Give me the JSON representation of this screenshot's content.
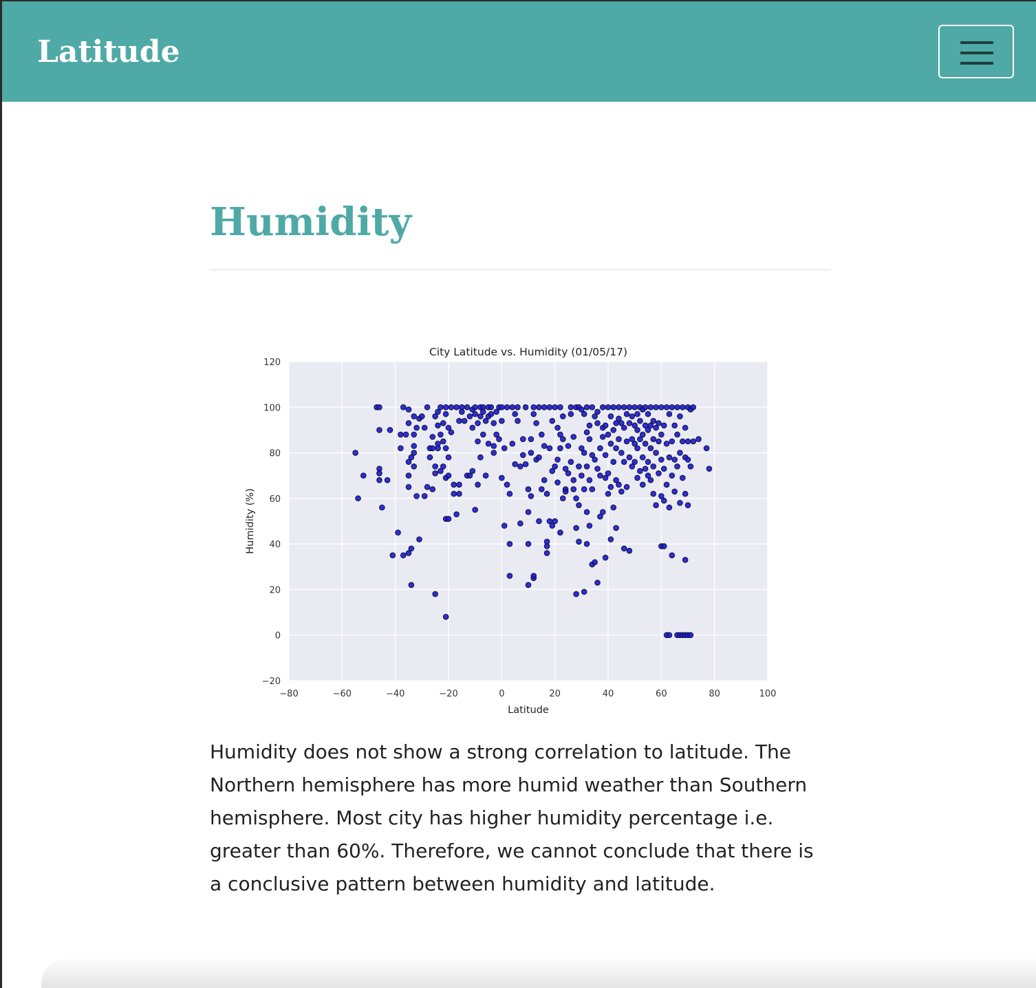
{
  "navbar": {
    "brand": "Latitude",
    "menu_icon": "hamburger-menu-icon",
    "color": "#4fa9a6"
  },
  "page": {
    "title": "Humidity",
    "title_color": "#4fa9a6",
    "description": "Humidity does not show a strong correlation to latitude. The Northern hemisphere has more humid weather than Southern hemisphere. Most city has higher humidity percentage i.e. greater than 60%. Therefore, we cannot conclude that there is a conclusive pattern between humidity and latitude."
  },
  "chart_data": {
    "type": "scatter",
    "title": "City Latitude vs. Humidity (01/05/17)",
    "xlabel": "Latitude",
    "ylabel": "Humidity (%)",
    "xlim": [
      -80,
      100
    ],
    "ylim": [
      -20,
      120
    ],
    "xticks": [
      "−80",
      "−60",
      "−40",
      "−20",
      "0",
      "20",
      "40",
      "60",
      "80",
      "100"
    ],
    "yticks": [
      "−20",
      "0",
      "20",
      "40",
      "60",
      "80",
      "100",
      "120"
    ],
    "grid": true,
    "background": "#e9eaf2",
    "marker_color": "#1a1ad6",
    "points": [
      [
        -55,
        80
      ],
      [
        -54,
        60
      ],
      [
        -52,
        70
      ],
      [
        -47,
        100
      ],
      [
        -46,
        100
      ],
      [
        -46,
        90
      ],
      [
        -46,
        68
      ],
      [
        -46,
        73
      ],
      [
        -46,
        71
      ],
      [
        -45,
        56
      ],
      [
        -43,
        68
      ],
      [
        -42,
        90
      ],
      [
        -41,
        35
      ],
      [
        -39,
        45
      ],
      [
        -38,
        88
      ],
      [
        -38,
        82
      ],
      [
        -37,
        100
      ],
      [
        -37,
        35
      ],
      [
        -36,
        88
      ],
      [
        -35,
        65
      ],
      [
        -35,
        70
      ],
      [
        -35,
        76
      ],
      [
        -35,
        93
      ],
      [
        -35,
        99
      ],
      [
        -35,
        36
      ],
      [
        -34,
        38
      ],
      [
        -34,
        22
      ],
      [
        -34,
        78
      ],
      [
        -33,
        83
      ],
      [
        -33,
        80
      ],
      [
        -33,
        74
      ],
      [
        -33,
        88
      ],
      [
        -33,
        96
      ],
      [
        -32,
        91
      ],
      [
        -32,
        61
      ],
      [
        -31,
        42
      ],
      [
        -31,
        95
      ],
      [
        -30,
        96
      ],
      [
        -29,
        91
      ],
      [
        -29,
        61
      ],
      [
        -28,
        100
      ],
      [
        -28,
        65
      ],
      [
        -27,
        78
      ],
      [
        -27,
        82
      ],
      [
        -26,
        87
      ],
      [
        -26,
        64
      ],
      [
        -26,
        82
      ],
      [
        -25,
        74
      ],
      [
        -25,
        71
      ],
      [
        -25,
        18
      ],
      [
        -25,
        96
      ],
      [
        -24,
        98
      ],
      [
        -24,
        92
      ],
      [
        -24,
        84
      ],
      [
        -24,
        82
      ],
      [
        -23,
        100
      ],
      [
        -23,
        88
      ],
      [
        -23,
        72
      ],
      [
        -22,
        93
      ],
      [
        -22,
        85
      ],
      [
        -22,
        74
      ],
      [
        -21,
        51
      ],
      [
        -21,
        8
      ],
      [
        -21,
        69
      ],
      [
        -21,
        97
      ],
      [
        -21,
        82
      ],
      [
        -21,
        100
      ],
      [
        -20,
        78
      ],
      [
        -20,
        51
      ],
      [
        -20,
        91
      ],
      [
        -20,
        70
      ],
      [
        -19,
        100
      ],
      [
        -19,
        89
      ],
      [
        -18,
        66
      ],
      [
        -18,
        62
      ],
      [
        -17,
        53
      ],
      [
        -17,
        100
      ],
      [
        -16,
        94
      ],
      [
        -16,
        66
      ],
      [
        -16,
        62
      ],
      [
        -15,
        100
      ],
      [
        -15,
        98
      ],
      [
        -14,
        94
      ],
      [
        -13,
        70
      ],
      [
        -13,
        100
      ],
      [
        -12,
        96
      ],
      [
        -12,
        70
      ],
      [
        -11,
        99
      ],
      [
        -11,
        91
      ],
      [
        -11,
        72
      ],
      [
        -10,
        100
      ],
      [
        -10,
        55
      ],
      [
        -10,
        97
      ],
      [
        -9,
        93
      ],
      [
        -9,
        85
      ],
      [
        -9,
        66
      ],
      [
        -8,
        100
      ],
      [
        -8,
        96
      ],
      [
        -8,
        78
      ],
      [
        -7,
        98
      ],
      [
        -7,
        88
      ],
      [
        -7,
        100
      ],
      [
        -6,
        94
      ],
      [
        -6,
        70
      ],
      [
        -5,
        100
      ],
      [
        -5,
        96
      ],
      [
        -5,
        84
      ],
      [
        -4,
        97
      ],
      [
        -4,
        100
      ],
      [
        -3,
        93
      ],
      [
        -3,
        83
      ],
      [
        -3,
        80
      ],
      [
        -2,
        98
      ],
      [
        -2,
        88
      ],
      [
        -1,
        100
      ],
      [
        -1,
        86
      ],
      [
        0,
        100
      ],
      [
        0,
        69
      ],
      [
        0,
        94
      ],
      [
        1,
        48
      ],
      [
        1,
        82
      ],
      [
        2,
        66
      ],
      [
        2,
        100
      ],
      [
        3,
        40
      ],
      [
        3,
        26
      ],
      [
        3,
        62
      ],
      [
        4,
        100
      ],
      [
        4,
        84
      ],
      [
        5,
        97
      ],
      [
        5,
        75
      ],
      [
        6,
        100
      ],
      [
        6,
        94
      ],
      [
        7,
        49
      ],
      [
        7,
        74
      ],
      [
        8,
        79
      ],
      [
        8,
        86
      ],
      [
        9,
        100
      ],
      [
        9,
        75
      ],
      [
        10,
        54
      ],
      [
        10,
        40
      ],
      [
        10,
        22
      ],
      [
        10,
        64
      ],
      [
        11,
        86
      ],
      [
        11,
        61
      ],
      [
        11,
        80
      ],
      [
        12,
        100
      ],
      [
        12,
        97
      ],
      [
        12,
        25
      ],
      [
        12,
        26
      ],
      [
        13,
        93
      ],
      [
        13,
        77
      ],
      [
        14,
        100
      ],
      [
        14,
        78
      ],
      [
        14,
        50
      ],
      [
        15,
        88
      ],
      [
        15,
        64
      ],
      [
        16,
        100
      ],
      [
        16,
        83
      ],
      [
        16,
        68
      ],
      [
        17,
        36
      ],
      [
        17,
        39
      ],
      [
        17,
        41
      ],
      [
        17,
        62
      ],
      [
        18,
        100
      ],
      [
        18,
        82
      ],
      [
        18,
        50
      ],
      [
        19,
        72
      ],
      [
        19,
        48
      ],
      [
        19,
        94
      ],
      [
        20,
        100
      ],
      [
        20,
        74
      ],
      [
        20,
        50
      ],
      [
        21,
        91
      ],
      [
        21,
        77
      ],
      [
        21,
        67
      ],
      [
        22,
        100
      ],
      [
        22,
        88
      ],
      [
        22,
        82
      ],
      [
        22,
        45
      ],
      [
        23,
        60
      ],
      [
        23,
        96
      ],
      [
        23,
        86
      ],
      [
        24,
        73
      ],
      [
        24,
        64
      ],
      [
        24,
        63
      ],
      [
        25,
        83
      ],
      [
        25,
        71
      ],
      [
        26,
        100
      ],
      [
        26,
        97
      ],
      [
        26,
        76
      ],
      [
        27,
        87
      ],
      [
        27,
        64
      ],
      [
        27,
        68
      ],
      [
        28,
        100
      ],
      [
        28,
        47
      ],
      [
        28,
        18
      ],
      [
        28,
        60
      ],
      [
        29,
        100
      ],
      [
        29,
        74
      ],
      [
        29,
        57
      ],
      [
        29,
        41
      ],
      [
        30,
        99
      ],
      [
        30,
        82
      ],
      [
        30,
        70
      ],
      [
        31,
        64
      ],
      [
        31,
        97
      ],
      [
        31,
        80
      ],
      [
        31,
        19
      ],
      [
        32,
        100
      ],
      [
        32,
        89
      ],
      [
        32,
        74
      ],
      [
        32,
        54
      ],
      [
        32,
        40
      ],
      [
        33,
        92
      ],
      [
        33,
        86
      ],
      [
        33,
        68
      ],
      [
        33,
        48
      ],
      [
        34,
        100
      ],
      [
        34,
        79
      ],
      [
        34,
        31
      ],
      [
        34,
        64
      ],
      [
        35,
        96
      ],
      [
        35,
        77
      ],
      [
        35,
        32
      ],
      [
        36,
        98
      ],
      [
        36,
        93
      ],
      [
        36,
        73
      ],
      [
        36,
        23
      ],
      [
        37,
        82
      ],
      [
        37,
        70
      ],
      [
        37,
        52
      ],
      [
        38,
        100
      ],
      [
        38,
        91
      ],
      [
        38,
        87
      ],
      [
        38,
        54
      ],
      [
        39,
        92
      ],
      [
        39,
        79
      ],
      [
        39,
        69
      ],
      [
        39,
        34
      ],
      [
        40,
        100
      ],
      [
        40,
        88
      ],
      [
        40,
        71
      ],
      [
        40,
        62
      ],
      [
        41,
        96
      ],
      [
        41,
        84
      ],
      [
        41,
        65
      ],
      [
        41,
        42
      ],
      [
        42,
        100
      ],
      [
        42,
        90
      ],
      [
        42,
        76
      ],
      [
        42,
        56
      ],
      [
        43,
        93
      ],
      [
        43,
        82
      ],
      [
        43,
        68
      ],
      [
        43,
        47
      ],
      [
        44,
        100
      ],
      [
        44,
        95
      ],
      [
        44,
        86
      ],
      [
        44,
        66
      ],
      [
        45,
        93
      ],
      [
        45,
        80
      ],
      [
        45,
        63
      ],
      [
        46,
        100
      ],
      [
        46,
        91
      ],
      [
        46,
        76
      ],
      [
        46,
        38
      ],
      [
        47,
        97
      ],
      [
        47,
        85
      ],
      [
        47,
        65
      ],
      [
        48,
        100
      ],
      [
        48,
        93
      ],
      [
        48,
        78
      ],
      [
        48,
        37
      ],
      [
        49,
        96
      ],
      [
        49,
        86
      ],
      [
        49,
        74
      ],
      [
        50,
        100
      ],
      [
        50,
        92
      ],
      [
        50,
        84
      ],
      [
        50,
        76
      ],
      [
        51,
        97
      ],
      [
        51,
        90
      ],
      [
        51,
        82
      ],
      [
        51,
        69
      ],
      [
        52,
        100
      ],
      [
        52,
        94
      ],
      [
        52,
        86
      ],
      [
        52,
        72
      ],
      [
        53,
        99
      ],
      [
        53,
        88
      ],
      [
        53,
        78
      ],
      [
        53,
        66
      ],
      [
        54,
        100
      ],
      [
        54,
        92
      ],
      [
        54,
        84
      ],
      [
        54,
        73
      ],
      [
        55,
        97
      ],
      [
        55,
        90
      ],
      [
        55,
        76
      ],
      [
        55,
        70
      ],
      [
        56,
        100
      ],
      [
        56,
        92
      ],
      [
        56,
        82
      ],
      [
        56,
        68
      ],
      [
        57,
        94
      ],
      [
        57,
        86
      ],
      [
        57,
        74
      ],
      [
        57,
        62
      ],
      [
        58,
        100
      ],
      [
        58,
        91
      ],
      [
        58,
        80
      ],
      [
        58,
        57
      ],
      [
        59,
        93
      ],
      [
        59,
        85
      ],
      [
        59,
        71
      ],
      [
        60,
        100
      ],
      [
        60,
        88
      ],
      [
        60,
        77
      ],
      [
        60,
        61
      ],
      [
        60,
        39
      ],
      [
        61,
        92
      ],
      [
        61,
        73
      ],
      [
        61,
        59
      ],
      [
        61,
        39
      ],
      [
        62,
        100
      ],
      [
        62,
        84
      ],
      [
        62,
        66
      ],
      [
        62,
        0
      ],
      [
        63,
        97
      ],
      [
        63,
        78
      ],
      [
        63,
        56
      ],
      [
        63,
        0
      ],
      [
        64,
        100
      ],
      [
        64,
        85
      ],
      [
        64,
        70
      ],
      [
        64,
        35
      ],
      [
        65,
        92
      ],
      [
        65,
        77
      ],
      [
        65,
        63
      ],
      [
        66,
        100
      ],
      [
        66,
        88
      ],
      [
        66,
        74
      ],
      [
        66,
        0
      ],
      [
        67,
        96
      ],
      [
        67,
        80
      ],
      [
        67,
        58
      ],
      [
        67,
        0
      ],
      [
        68,
        100
      ],
      [
        68,
        85
      ],
      [
        68,
        69
      ],
      [
        68,
        0
      ],
      [
        69,
        91
      ],
      [
        69,
        78
      ],
      [
        69,
        62
      ],
      [
        69,
        33
      ],
      [
        69,
        0
      ],
      [
        70,
        100
      ],
      [
        70,
        85
      ],
      [
        70,
        77
      ],
      [
        70,
        57
      ],
      [
        70,
        0
      ],
      [
        71,
        99
      ],
      [
        71,
        74
      ],
      [
        71,
        0
      ],
      [
        72,
        100
      ],
      [
        72,
        85
      ],
      [
        74,
        86
      ],
      [
        77,
        82
      ],
      [
        78,
        73
      ]
    ]
  }
}
